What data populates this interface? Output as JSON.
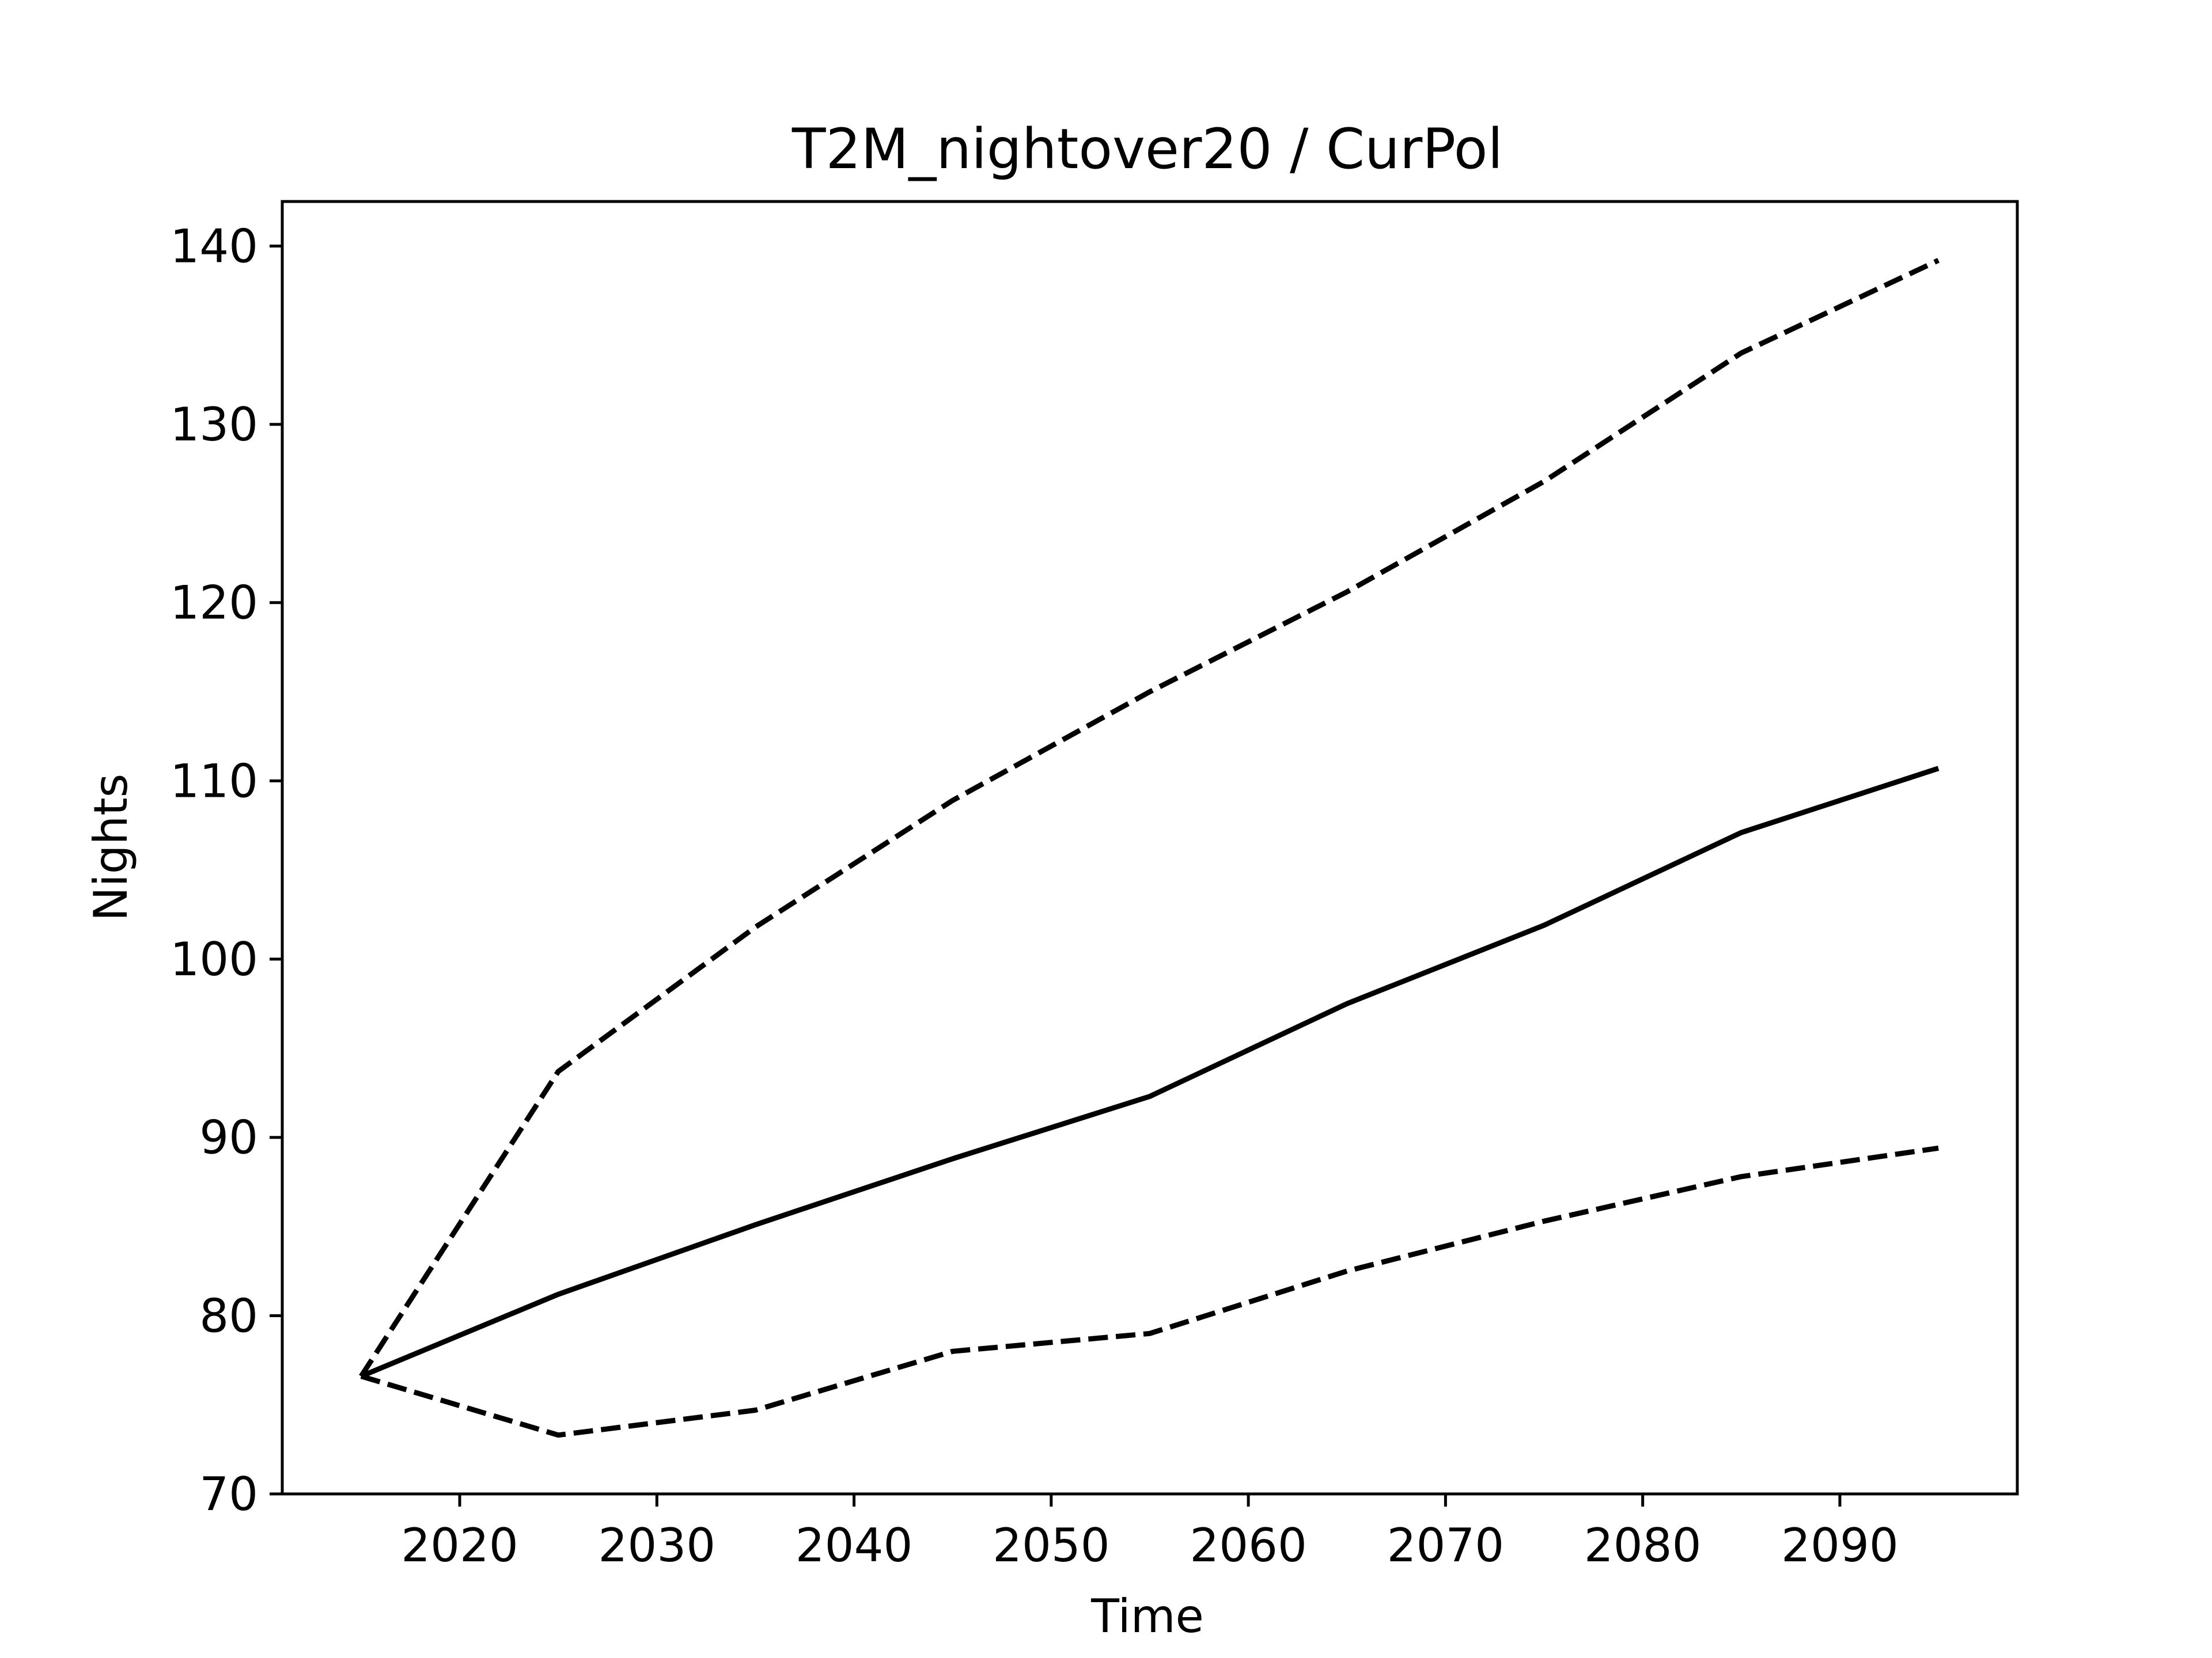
{
  "chart_data": {
    "type": "line",
    "title": "T2M_nightover20 / CurPol",
    "xlabel": "Time",
    "ylabel": "Nights",
    "xlim": [
      2011,
      2099
    ],
    "ylim": [
      70,
      142.5
    ],
    "xticks": [
      2020,
      2030,
      2040,
      2050,
      2060,
      2070,
      2080,
      2090
    ],
    "yticks": [
      70,
      80,
      90,
      100,
      110,
      120,
      130,
      140
    ],
    "grid": false,
    "legend": "none",
    "x": [
      2015,
      2025,
      2035,
      2045,
      2055,
      2065,
      2075,
      2085,
      2095
    ],
    "series": [
      {
        "style": "solid",
        "color": "#000000",
        "values": [
          76.6,
          81.2,
          85.1,
          88.8,
          92.3,
          97.5,
          101.9,
          107.1,
          110.7
        ]
      },
      {
        "style": "dashed",
        "color": "#000000",
        "values": [
          76.6,
          93.7,
          101.8,
          108.9,
          115.0,
          120.6,
          126.8,
          134.0,
          139.2
        ]
      },
      {
        "style": "dashed",
        "color": "#000000",
        "values": [
          76.6,
          73.3,
          74.7,
          78.0,
          79.0,
          82.5,
          85.3,
          87.8,
          89.4
        ]
      }
    ]
  }
}
